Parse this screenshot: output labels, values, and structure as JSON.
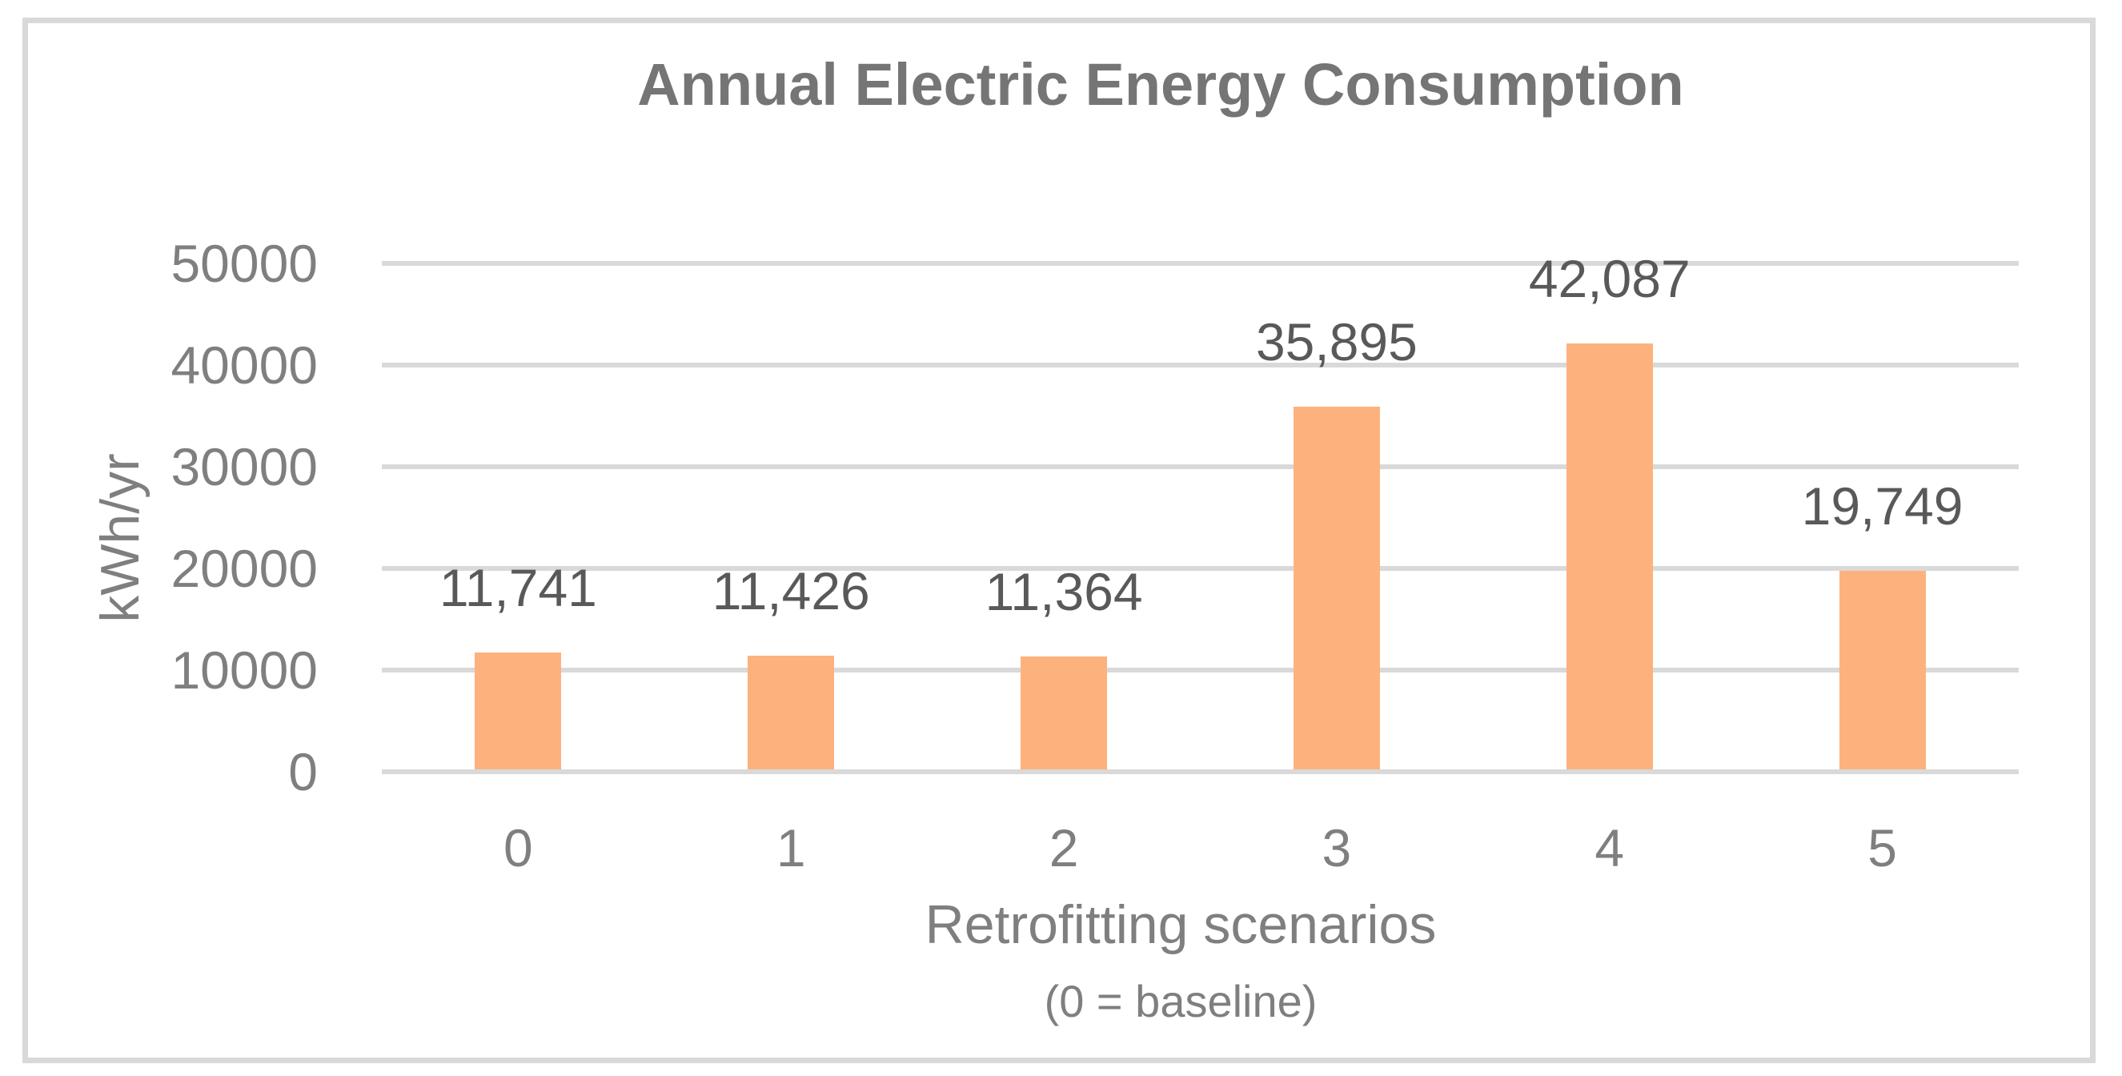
{
  "chart": {
    "title": "Annual Electric Energy Consumption",
    "y_axis_title": "kWh/yr",
    "x_axis_title": "Retrofitting scenarios",
    "x_axis_subtitle": "(0 = baseline)"
  },
  "chart_data": {
    "type": "bar",
    "title": "Annual Electric Energy Consumption",
    "categories": [
      "0",
      "1",
      "2",
      "3",
      "4",
      "5"
    ],
    "values": [
      11741,
      11426,
      11364,
      35895,
      42087,
      19749
    ],
    "data_labels": [
      "11,741",
      "11,426",
      "11,364",
      "35,895",
      "42,087",
      "19,749"
    ],
    "xlabel": "Retrofitting scenarios",
    "xlabel_note": "(0 = baseline)",
    "ylabel": "kWh/yr",
    "ylim": [
      0,
      50000
    ],
    "y_ticks": [
      0,
      10000,
      20000,
      30000,
      40000,
      50000
    ],
    "grid": "horizontal-only",
    "legend": "none",
    "bar_color": "#FDB27D"
  },
  "colors": {
    "bar_fill": "#FDB27D",
    "gridline": "#D9D9D9",
    "frame_border": "#D9D9D9",
    "title_text": "#757575",
    "axis_text": "#7F7F7F",
    "data_label_text": "#595959",
    "background": "#FFFFFF"
  }
}
